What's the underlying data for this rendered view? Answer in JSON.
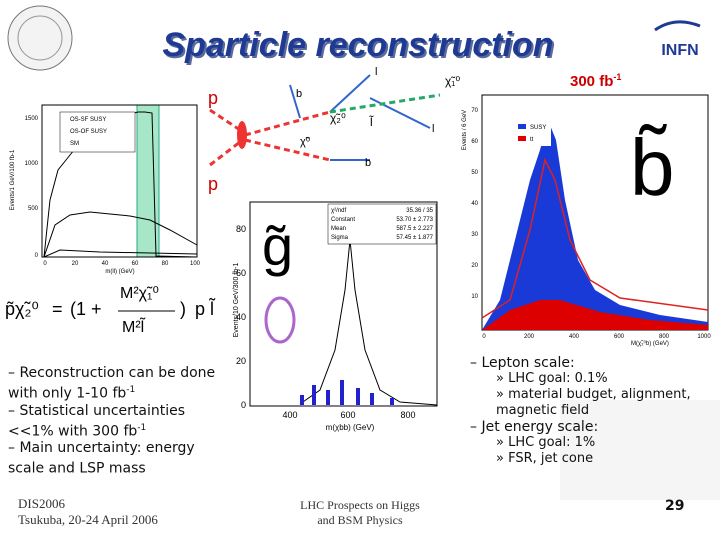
{
  "header": {
    "title": "Sparticle reconstruction",
    "logo": "INFN",
    "luminosity": [
      "300 fb",
      "-1"
    ]
  },
  "diagram": {
    "labels": [
      "p",
      "p",
      "b",
      "b",
      "χ̃₂⁰",
      "l̃",
      "χ̃₁⁰",
      "l",
      "l",
      "χ̃⁰"
    ]
  },
  "left_plot": {
    "ylabel": "Events/1 GeV/100 fb-1",
    "xlabel": "m(ll) (GeV)",
    "yticks": [
      "1500",
      "1000",
      "500",
      "0"
    ],
    "xticks": [
      "0",
      "20",
      "40",
      "60",
      "80",
      "100"
    ],
    "legend": [
      "OS-SF SUSY",
      "OS-OF SUSY",
      "SM"
    ]
  },
  "formula": {
    "lhs": "p̃χ̃₂⁰",
    "eq": "=",
    "open": "(1 +",
    "num": "M²χ̃₁⁰",
    "den": "M²l̃",
    "close": ")",
    "rhs": "p l̃"
  },
  "middle_plot": {
    "symbol": "g̃",
    "ylabel": "Events/10 GeV/300 fb-1",
    "xlabel": "m(χbb) (GeV)",
    "yticks": [
      "80",
      "60",
      "40",
      "20",
      "0"
    ],
    "xticks": [
      "400",
      "600",
      "800"
    ],
    "stats": [
      [
        "χ²/ndf",
        "35.36 / 35"
      ],
      [
        "Constant",
        "53.70 ± 2.773"
      ],
      [
        "Mean",
        "587.5 ± 2.227"
      ],
      [
        "Sigma",
        "57.45 ± 1.877"
      ]
    ]
  },
  "right_plot": {
    "symbol": "b̃",
    "ylabel": "Events / 6 GeV",
    "xlabel": "M(χ̃₂⁰b) (GeV)",
    "yticks": [
      "70",
      "60",
      "50",
      "40",
      "30",
      "20",
      "10"
    ],
    "xticks": [
      "0",
      "200",
      "400",
      "600",
      "800",
      "1000"
    ],
    "legend": [
      "SUSY",
      "tt"
    ]
  },
  "bullets_left": [
    [
      "Reconstruction can be done with only 1-10 fb",
      "-1",
      ""
    ],
    [
      "Statistical uncertainties <<1% with 300 fb",
      "-1",
      ""
    ],
    [
      "Main uncertainty: energy scale and LSP mass",
      "",
      ""
    ]
  ],
  "bullets_right": {
    "lepton": "Lepton scale:",
    "lepton_items": [
      "LHC goal: 0.1%",
      "material budget, alignment, magnetic field"
    ],
    "jet": "Jet energy scale:",
    "jet_items": [
      "LHC goal: 1%",
      "FSR, jet cone"
    ]
  },
  "footer": {
    "conf": "DIS2006",
    "place": "Tsukuba, 20-24 April 2006",
    "center": [
      "LHC Prospects on Higgs",
      "and BSM Physics"
    ],
    "page": "29"
  }
}
